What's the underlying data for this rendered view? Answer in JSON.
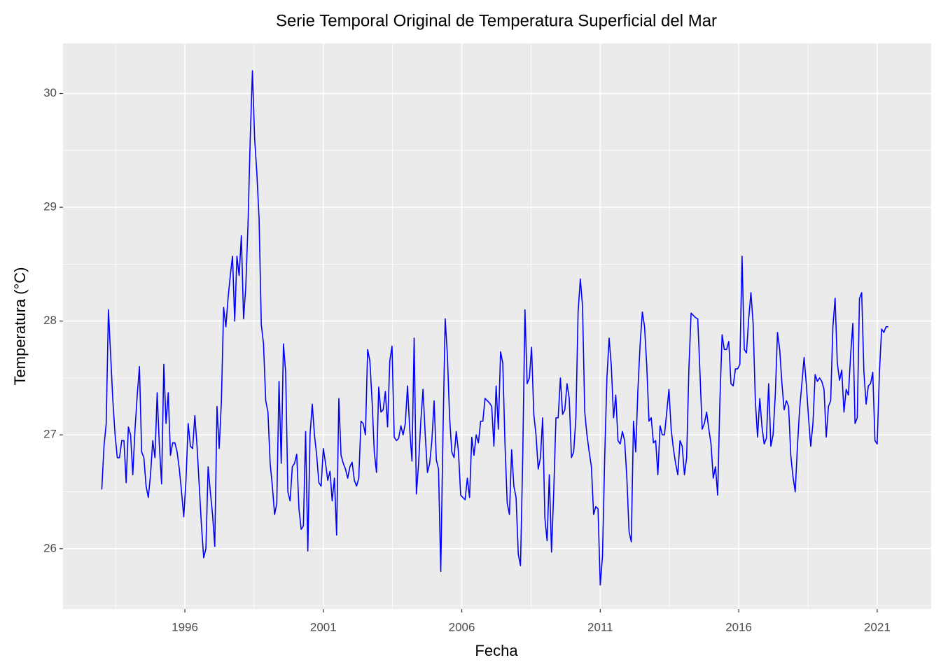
{
  "chart_data": {
    "type": "line",
    "title": "Serie Temporal Original de Temperatura Superficial del Mar",
    "xlabel": "Fecha",
    "ylabel": "Temperatura (°C)",
    "color": "#0000ff",
    "grid": true,
    "xlim": [
      1991.6,
      2022.95
    ],
    "xticks": [
      1996,
      2001,
      2006,
      2011,
      2016,
      2021
    ],
    "ylim": [
      25.47,
      30.44
    ],
    "yticks": [
      26,
      27,
      28,
      29,
      30
    ],
    "x": [
      1993,
      1993.08,
      1993.16,
      1993.24,
      1993.32,
      1993.4,
      1993.48,
      1993.56,
      1993.64,
      1993.72,
      1993.8,
      1993.88,
      1993.96,
      1994.04,
      1994.12,
      1994.2,
      1994.28,
      1994.36,
      1994.44,
      1994.52,
      1994.6,
      1994.68,
      1994.76,
      1994.84,
      1994.92,
      1995,
      1995.08,
      1995.16,
      1995.24,
      1995.32,
      1995.4,
      1995.48,
      1995.56,
      1995.64,
      1995.72,
      1995.8,
      1995.88,
      1995.96,
      1996.04,
      1996.12,
      1996.2,
      1996.28,
      1996.36,
      1996.44,
      1996.52,
      1996.6,
      1996.68,
      1996.76,
      1996.84,
      1996.92,
      1997,
      1997.08,
      1997.16,
      1997.24,
      1997.32,
      1997.4,
      1997.48,
      1997.56,
      1997.64,
      1997.72,
      1997.8,
      1997.88,
      1997.96,
      1998.04,
      1998.12,
      1998.2,
      1998.28,
      1998.36,
      1998.44,
      1998.52,
      1998.6,
      1998.68,
      1998.76,
      1998.84,
      1998.92,
      1999,
      1999.08,
      1999.16,
      1999.24,
      1999.32,
      1999.4,
      1999.48,
      1999.56,
      1999.64,
      1999.72,
      1999.8,
      1999.88,
      1999.96,
      2000.04,
      2000.12,
      2000.2,
      2000.28,
      2000.36,
      2000.44,
      2000.52,
      2000.6,
      2000.68,
      2000.76,
      2000.84,
      2000.92,
      2001,
      2001.08,
      2001.16,
      2001.24,
      2001.32,
      2001.4,
      2001.48,
      2001.56,
      2001.64,
      2001.72,
      2001.8,
      2001.88,
      2001.96,
      2002.04,
      2002.12,
      2002.2,
      2002.28,
      2002.36,
      2002.44,
      2002.52,
      2002.6,
      2002.68,
      2002.76,
      2002.84,
      2002.92,
      2003,
      2003.08,
      2003.16,
      2003.24,
      2003.32,
      2003.4,
      2003.48,
      2003.56,
      2003.64,
      2003.72,
      2003.8,
      2003.88,
      2003.96,
      2004.04,
      2004.12,
      2004.2,
      2004.28,
      2004.36,
      2004.44,
      2004.52,
      2004.6,
      2004.68,
      2004.76,
      2004.84,
      2004.92,
      2005,
      2005.08,
      2005.16,
      2005.24,
      2005.32,
      2005.4,
      2005.48,
      2005.56,
      2005.64,
      2005.72,
      2005.8,
      2005.88,
      2005.96,
      2006.04,
      2006.12,
      2006.2,
      2006.28,
      2006.36,
      2006.44,
      2006.52,
      2006.6,
      2006.68,
      2006.76,
      2006.84,
      2006.92,
      2007,
      2007.08,
      2007.16,
      2007.24,
      2007.32,
      2007.4,
      2007.48,
      2007.56,
      2007.64,
      2007.72,
      2007.8,
      2007.88,
      2007.96,
      2008.04,
      2008.12,
      2008.2,
      2008.28,
      2008.36,
      2008.44,
      2008.52,
      2008.6,
      2008.68,
      2008.76,
      2008.84,
      2008.92,
      2009,
      2009.08,
      2009.16,
      2009.24,
      2009.32,
      2009.4,
      2009.48,
      2009.56,
      2009.64,
      2009.72,
      2009.8,
      2009.88,
      2009.96,
      2010.04,
      2010.12,
      2010.2,
      2010.28,
      2010.36,
      2010.44,
      2010.52,
      2010.6,
      2010.68,
      2010.76,
      2010.84,
      2010.92,
      2011,
      2011.08,
      2011.16,
      2011.24,
      2011.32,
      2011.4,
      2011.48,
      2011.56,
      2011.64,
      2011.72,
      2011.8,
      2011.88,
      2011.96,
      2012.04,
      2012.12,
      2012.2,
      2012.28,
      2012.36,
      2012.44,
      2012.52,
      2012.6,
      2012.68,
      2012.76,
      2012.84,
      2012.92,
      2013,
      2013.08,
      2013.16,
      2013.24,
      2013.32,
      2013.4,
      2013.48,
      2013.56,
      2013.64,
      2013.72,
      2013.8,
      2013.88,
      2013.96,
      2014.04,
      2014.12,
      2014.2,
      2014.28,
      2014.36,
      2014.44,
      2014.52,
      2014.6,
      2014.68,
      2014.76,
      2014.84,
      2014.92,
      2015,
      2015.08,
      2015.16,
      2015.24,
      2015.32,
      2015.4,
      2015.48,
      2015.56,
      2015.64,
      2015.72,
      2015.8,
      2015.88,
      2015.96,
      2016.04,
      2016.12,
      2016.2,
      2016.28,
      2016.36,
      2016.44,
      2016.52,
      2016.6,
      2016.68,
      2016.76,
      2016.84,
      2016.92,
      2017,
      2017.08,
      2017.16,
      2017.24,
      2017.32,
      2017.4,
      2017.48,
      2017.56,
      2017.64,
      2017.72,
      2017.8,
      2017.88,
      2017.96,
      2018.04,
      2018.12,
      2018.2,
      2018.28,
      2018.36,
      2018.44,
      2018.52,
      2018.6,
      2018.68,
      2018.76,
      2018.84,
      2018.92,
      2019,
      2019.08,
      2019.16,
      2019.24,
      2019.32,
      2019.4,
      2019.48,
      2019.56,
      2019.64,
      2019.72,
      2019.8,
      2019.88,
      2019.96,
      2020.04,
      2020.12,
      2020.2,
      2020.28,
      2020.36,
      2020.44,
      2020.52,
      2020.6,
      2020.68,
      2020.76,
      2020.84,
      2020.92,
      2021,
      2021.08,
      2021.16,
      2021.24,
      2021.32,
      2021.4
    ],
    "values": [
      26.52,
      26.9,
      27.1,
      28.1,
      27.7,
      27.3,
      27.0,
      26.8,
      26.8,
      26.95,
      26.95,
      26.58,
      27.07,
      27.0,
      26.65,
      27.05,
      27.35,
      27.6,
      26.85,
      26.8,
      26.55,
      26.45,
      26.65,
      26.95,
      26.8,
      27.37,
      26.9,
      26.57,
      27.62,
      27.1,
      27.37,
      26.82,
      26.93,
      26.93,
      26.85,
      26.7,
      26.5,
      26.28,
      26.6,
      27.1,
      26.9,
      26.88,
      27.17,
      26.9,
      26.55,
      26.2,
      25.92,
      26.0,
      26.72,
      26.5,
      26.3,
      26.02,
      27.25,
      26.88,
      27.3,
      28.12,
      27.95,
      28.2,
      28.4,
      28.57,
      28.0,
      28.57,
      28.4,
      28.75,
      28.02,
      28.3,
      28.85,
      29.6,
      30.2,
      29.6,
      29.3,
      28.9,
      27.97,
      27.8,
      27.3,
      27.2,
      26.75,
      26.55,
      26.3,
      26.4,
      27.47,
      26.75,
      27.8,
      27.55,
      26.5,
      26.42,
      26.72,
      26.75,
      26.83,
      26.35,
      26.17,
      26.2,
      27.03,
      25.98,
      27.0,
      27.27,
      27.0,
      26.82,
      26.58,
      26.55,
      26.88,
      26.75,
      26.6,
      26.68,
      26.42,
      26.62,
      26.12,
      27.32,
      26.82,
      26.75,
      26.7,
      26.62,
      26.72,
      26.76,
      26.6,
      26.55,
      26.62,
      27.12,
      27.1,
      27.0,
      27.75,
      27.65,
      27.3,
      26.85,
      26.67,
      27.42,
      27.2,
      27.22,
      27.38,
      27.07,
      27.65,
      27.78,
      26.98,
      26.95,
      26.97,
      27.08,
      27.0,
      27.1,
      27.43,
      27.05,
      26.77,
      27.85,
      26.48,
      26.75,
      27.12,
      27.4,
      27.0,
      26.67,
      26.75,
      26.95,
      27.3,
      26.78,
      26.7,
      25.8,
      27.0,
      28.02,
      27.7,
      27.15,
      26.85,
      26.8,
      27.03,
      26.85,
      26.47,
      26.45,
      26.43,
      26.62,
      26.45,
      26.98,
      26.82,
      27.0,
      26.93,
      27.12,
      27.12,
      27.32,
      27.3,
      27.28,
      27.25,
      26.9,
      27.43,
      27.05,
      27.73,
      27.63,
      26.92,
      26.4,
      26.3,
      26.87,
      26.55,
      26.45,
      25.95,
      25.85,
      26.8,
      28.1,
      27.45,
      27.5,
      27.77,
      27.18,
      27.0,
      26.7,
      26.8,
      27.15,
      26.27,
      26.07,
      26.65,
      25.97,
      26.5,
      27.15,
      27.15,
      27.5,
      27.18,
      27.22,
      27.45,
      27.32,
      26.8,
      26.85,
      27.15,
      28.08,
      28.37,
      28.13,
      27.2,
      27.0,
      26.85,
      26.72,
      26.3,
      26.37,
      26.35,
      25.68,
      25.93,
      26.8,
      27.5,
      27.85,
      27.6,
      27.15,
      27.35,
      26.95,
      26.92,
      27.03,
      26.95,
      26.62,
      26.15,
      26.06,
      27.12,
      26.85,
      27.4,
      27.8,
      28.08,
      27.95,
      27.6,
      27.12,
      27.15,
      26.93,
      26.95,
      26.65,
      27.08,
      27.0,
      27.0,
      27.2,
      27.4,
      27.05,
      26.88,
      26.75,
      26.65,
      26.95,
      26.9,
      26.65,
      26.8,
      27.58,
      28.07,
      28.05,
      28.03,
      28.02,
      27.55,
      27.05,
      27.1,
      27.2,
      27.05,
      26.92,
      26.62,
      26.72,
      26.47,
      27.3,
      27.88,
      27.75,
      27.75,
      27.82,
      27.45,
      27.43,
      27.58,
      27.58,
      27.62,
      28.57,
      27.75,
      27.72,
      28.02,
      28.25,
      27.98,
      27.3,
      26.98,
      27.32,
      27.07,
      26.92,
      26.97,
      27.45,
      26.9,
      27.0,
      27.35,
      27.9,
      27.75,
      27.45,
      27.22,
      27.3,
      27.25,
      26.82,
      26.63,
      26.5,
      26.9,
      27.23,
      27.45,
      27.68,
      27.45,
      27.15,
      26.9,
      27.1,
      27.53,
      27.47,
      27.5,
      27.47,
      27.4,
      26.98,
      27.25,
      27.3,
      27.95,
      28.2,
      27.63,
      27.48,
      27.57,
      27.2,
      27.4,
      27.35,
      27.7,
      27.98,
      27.1,
      27.15,
      28.2,
      28.25,
      27.55,
      27.27,
      27.43,
      27.45,
      27.55,
      26.95,
      26.92,
      27.55,
      27.93,
      27.9,
      27.95,
      27.95
    ]
  }
}
